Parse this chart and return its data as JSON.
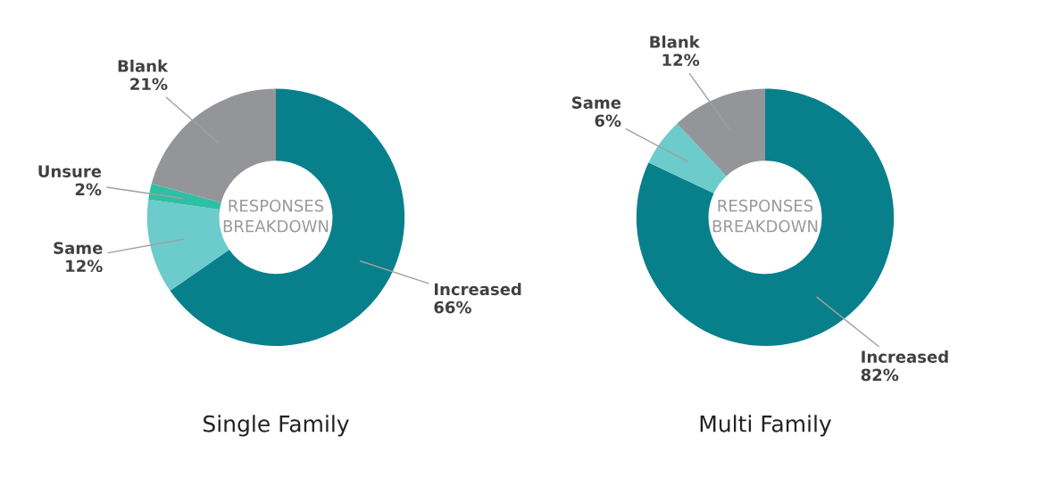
{
  "chart_data": [
    {
      "type": "donut",
      "title": "Single Family",
      "categories": [
        "Increased",
        "Same",
        "Unsure",
        "Blank"
      ],
      "values": [
        66,
        12,
        2,
        21
      ],
      "value_labels": [
        "66%",
        "12%",
        "2%",
        "21%"
      ],
      "colors": [
        "#08808c",
        "#6ccbcb",
        "#2fbfa5",
        "#939598"
      ],
      "annotations": [
        "RESPONSES\nBREAKDOWN"
      ],
      "legend": false
    },
    {
      "type": "donut",
      "title": "Multi Family",
      "categories": [
        "Increased",
        "Same",
        "Blank"
      ],
      "values": [
        82,
        6,
        12
      ],
      "value_labels": [
        "82%",
        "6%",
        "12%"
      ],
      "colors": [
        "#08808c",
        "#6ccbcb",
        "#939598"
      ],
      "annotations": [
        "RESPONSES\nBREAKDOWN"
      ],
      "legend": false
    }
  ]
}
